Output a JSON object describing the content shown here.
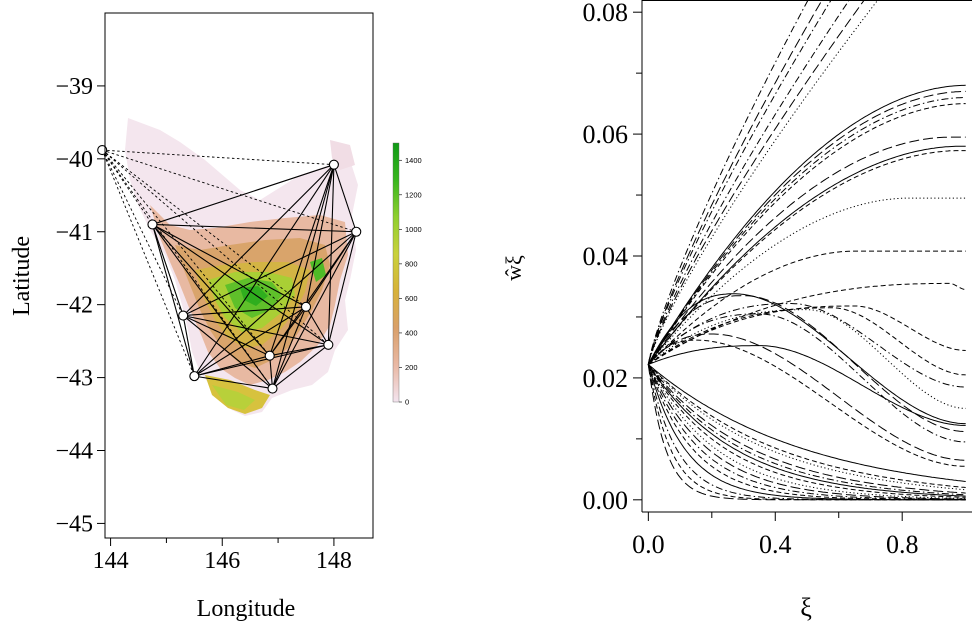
{
  "chart_data": [
    {
      "type": "map-network",
      "xlabel": "Longitude",
      "ylabel": "Latitude",
      "xlim": [
        143.9,
        148.7
      ],
      "ylim": [
        -45.2,
        -38.0
      ],
      "xticks": [
        144,
        146,
        148
      ],
      "xtick_labels": [
        "144",
        "146",
        "148"
      ],
      "yticks": [
        -39,
        -40,
        -41,
        -42,
        -43,
        -44,
        -45
      ],
      "ytick_labels": [
        "−39",
        "−40",
        "−41",
        "−42",
        "−43",
        "−44",
        "−45"
      ],
      "stations": [
        {
          "lon": 143.85,
          "lat": -39.88
        },
        {
          "lon": 148.0,
          "lat": -40.08
        },
        {
          "lon": 144.75,
          "lat": -40.9
        },
        {
          "lon": 148.4,
          "lat": -41.0
        },
        {
          "lon": 147.5,
          "lat": -42.03
        },
        {
          "lon": 145.3,
          "lat": -42.15
        },
        {
          "lon": 147.9,
          "lat": -42.55
        },
        {
          "lon": 146.85,
          "lat": -42.7
        },
        {
          "lon": 145.5,
          "lat": -42.98
        },
        {
          "lon": 146.9,
          "lat": -43.15
        }
      ],
      "solid_edges": [
        [
          1,
          2
        ],
        [
          1,
          3
        ],
        [
          1,
          4
        ],
        [
          1,
          5
        ],
        [
          1,
          6
        ],
        [
          1,
          7
        ],
        [
          1,
          8
        ],
        [
          1,
          9
        ],
        [
          2,
          3
        ],
        [
          2,
          4
        ],
        [
          2,
          5
        ],
        [
          2,
          6
        ],
        [
          2,
          7
        ],
        [
          2,
          8
        ],
        [
          2,
          9
        ],
        [
          3,
          4
        ],
        [
          3,
          5
        ],
        [
          3,
          6
        ],
        [
          3,
          7
        ],
        [
          3,
          8
        ],
        [
          3,
          9
        ],
        [
          4,
          5
        ],
        [
          4,
          6
        ],
        [
          4,
          7
        ],
        [
          4,
          8
        ],
        [
          4,
          9
        ],
        [
          5,
          6
        ],
        [
          5,
          7
        ],
        [
          5,
          8
        ],
        [
          5,
          9
        ],
        [
          6,
          7
        ],
        [
          6,
          8
        ],
        [
          6,
          9
        ],
        [
          7,
          8
        ],
        [
          7,
          9
        ],
        [
          8,
          9
        ]
      ],
      "dashed_edges": [
        [
          0,
          1
        ],
        [
          0,
          2
        ],
        [
          0,
          3
        ],
        [
          0,
          4
        ],
        [
          0,
          5
        ],
        [
          0,
          6
        ],
        [
          0,
          7
        ],
        [
          0,
          8
        ],
        [
          0,
          9
        ]
      ],
      "colorbar": {
        "ticks": [
          0,
          200,
          400,
          600,
          800,
          1000,
          1200,
          1400
        ],
        "tick_labels": [
          "0",
          "200",
          "400",
          "600",
          "800",
          "1000",
          "1200",
          "1400"
        ],
        "range": [
          0,
          1500
        ],
        "colors": [
          "#f3e4ef",
          "#e9b8a4",
          "#d9a06a",
          "#d7b23a",
          "#c9d13b",
          "#8fcf2e",
          "#38b61d",
          "#0f9a16"
        ]
      }
    },
    {
      "type": "line",
      "xlabel": "ξ",
      "ylabel": "ŵξ",
      "xlim": [
        -0.02,
        1.02
      ],
      "ylim": [
        -0.002,
        0.082
      ],
      "xticks": [
        0.0,
        0.4,
        0.8
      ],
      "xtick_labels": [
        "0.0",
        "0.4",
        "0.8"
      ],
      "yticks": [
        0.0,
        0.02,
        0.04,
        0.06,
        0.08
      ],
      "ytick_labels": [
        "0.00",
        "0.02",
        "0.04",
        "0.06",
        "0.08"
      ],
      "intercept": 0.0222,
      "rising_curves": [
        {
          "style": "dashdot",
          "slope": 0.105
        },
        {
          "style": "longdash",
          "slope": 0.098
        },
        {
          "style": "dashdot",
          "slope": 0.094
        },
        {
          "style": "dotted",
          "slope": 0.078
        },
        {
          "style": "dashdot",
          "slope": 0.087
        },
        {
          "style": "longdash",
          "slope": 0.082
        }
      ],
      "plateau_curves": [
        {
          "style": "solid",
          "end": 0.068,
          "peak_x": 1.0
        },
        {
          "style": "longdash",
          "end": 0.067,
          "peak_x": 1.0
        },
        {
          "style": "dashdot",
          "end": 0.066,
          "peak_x": 1.0
        },
        {
          "style": "dashed",
          "end": 0.065,
          "peak_x": 1.0
        },
        {
          "style": "longdash",
          "end": 0.0595,
          "peak_x": 0.95
        },
        {
          "style": "solid",
          "end": 0.058,
          "peak_x": 0.98
        },
        {
          "style": "dashed",
          "end": 0.0573,
          "peak_x": 0.98
        },
        {
          "style": "dotted",
          "end": 0.0495,
          "peak_x": 0.82
        },
        {
          "style": "dashed",
          "end": 0.0408,
          "peak_x": 0.65
        }
      ],
      "hump_curves": [
        {
          "style": "dashed",
          "peak": 0.0355,
          "peak_x": 0.95,
          "end": 0.0345
        },
        {
          "style": "solid",
          "peak": 0.0338,
          "peak_x": 0.27,
          "end": 0.0125
        },
        {
          "style": "longdash",
          "peak": 0.0335,
          "peak_x": 0.3,
          "end": 0.0112
        },
        {
          "style": "dashdot",
          "peak": 0.0322,
          "peak_x": 0.45,
          "end": 0.0185
        },
        {
          "style": "dashed",
          "peak": 0.0318,
          "peak_x": 0.65,
          "end": 0.0245
        },
        {
          "style": "dashed",
          "peak": 0.0315,
          "peak_x": 0.58,
          "end": 0.0205
        },
        {
          "style": "dotted",
          "peak": 0.0312,
          "peak_x": 0.5,
          "end": 0.015
        },
        {
          "style": "dashdot",
          "peak": 0.0305,
          "peak_x": 0.35,
          "end": 0.0095
        },
        {
          "style": "solid",
          "peak": 0.0253,
          "peak_x": 0.35,
          "end": 0.0122
        },
        {
          "style": "longdash",
          "peak": 0.0272,
          "peak_x": 0.2,
          "end": 0.0065
        },
        {
          "style": "dashed",
          "peak": 0.0262,
          "peak_x": 0.15,
          "end": 0.0055
        }
      ],
      "decay_curves": [
        {
          "style": "solid",
          "rate": 2.0,
          "floor": 0.0
        },
        {
          "style": "dashed",
          "rate": 2.4,
          "floor": 0.0
        },
        {
          "style": "dotted",
          "rate": 2.6,
          "floor": 0.0
        },
        {
          "style": "longdash",
          "rate": 3.0,
          "floor": 0.0
        },
        {
          "style": "dashdot",
          "rate": 3.3,
          "floor": 0.0
        },
        {
          "style": "solid",
          "rate": 3.6,
          "floor": 0.0
        },
        {
          "style": "dashed",
          "rate": 4.0,
          "floor": 0.0
        },
        {
          "style": "dotted",
          "rate": 4.6,
          "floor": 0.0
        },
        {
          "style": "longdash",
          "rate": 5.2,
          "floor": 0.0
        },
        {
          "style": "dashdot",
          "rate": 6.0,
          "floor": 0.0
        },
        {
          "style": "dashed",
          "rate": 7.0,
          "floor": 0.0
        },
        {
          "style": "solid",
          "rate": 8.5,
          "floor": 0.0
        },
        {
          "style": "dashdot",
          "rate": 11.0,
          "floor": 0.0
        },
        {
          "style": "dashed",
          "rate": 14.0,
          "floor": 0.0
        },
        {
          "style": "longdash",
          "rate": 18.0,
          "floor": 0.0
        }
      ]
    }
  ]
}
